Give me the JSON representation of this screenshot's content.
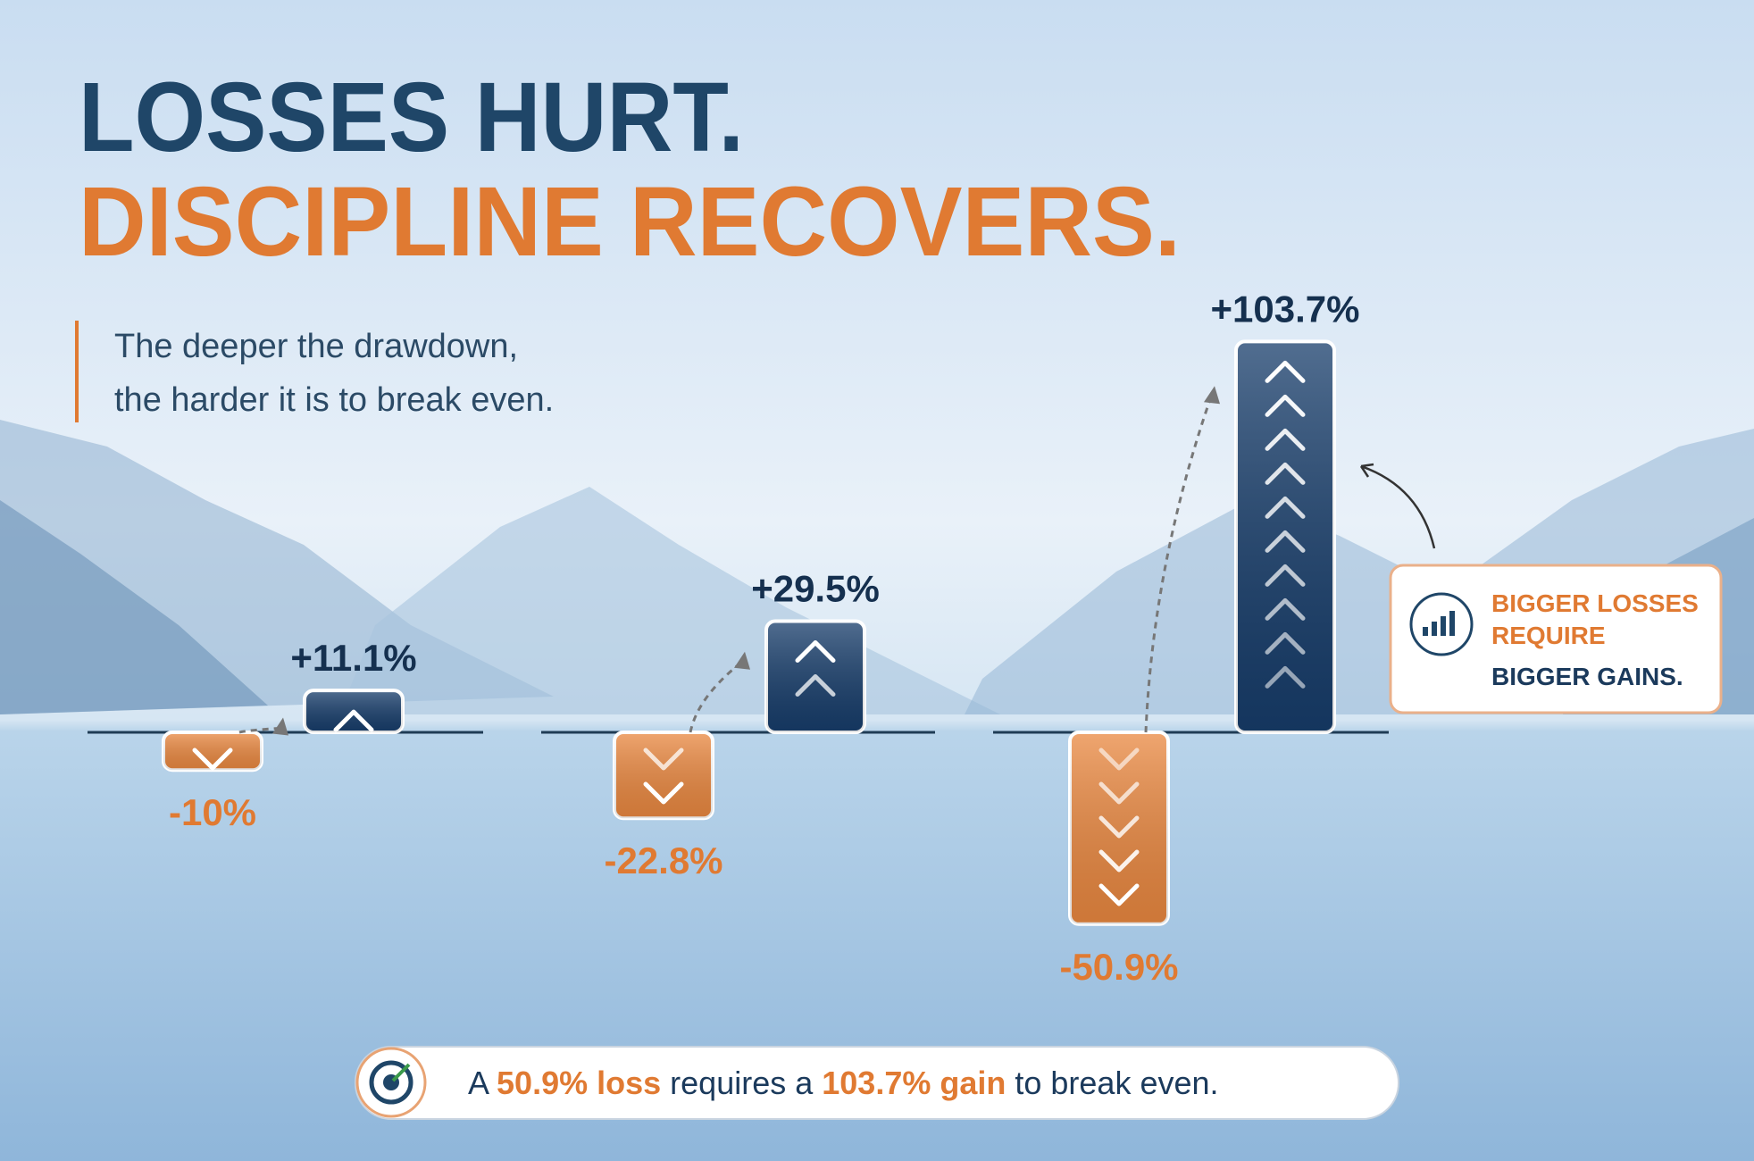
{
  "chart_data": {
    "type": "bar",
    "title": [
      "LOSSES HURT.",
      "DISCIPLINE RECOVERS."
    ],
    "subtitle": [
      "The deeper the drawdown,",
      "the harder it is to break even."
    ],
    "series": [
      {
        "color": "#ea8840",
        "values": [
          -10,
          -22.8,
          -50.9
        ],
        "value_labels": [
          "-10%",
          "-22.8%",
          "-50.9%"
        ]
      },
      {
        "color": "#173d6b",
        "values": [
          11.1,
          29.5,
          103.7
        ],
        "value_labels": [
          "+11.1%",
          "+29.5%",
          "+103.7%"
        ]
      }
    ],
    "callout": [
      "BIGGER LOSSES",
      "REQUIRE",
      "BIGGER GAINS."
    ],
    "footer": [
      "A ",
      "50.9% loss",
      " requires a ",
      "103.7% gain",
      " to break even."
    ]
  }
}
